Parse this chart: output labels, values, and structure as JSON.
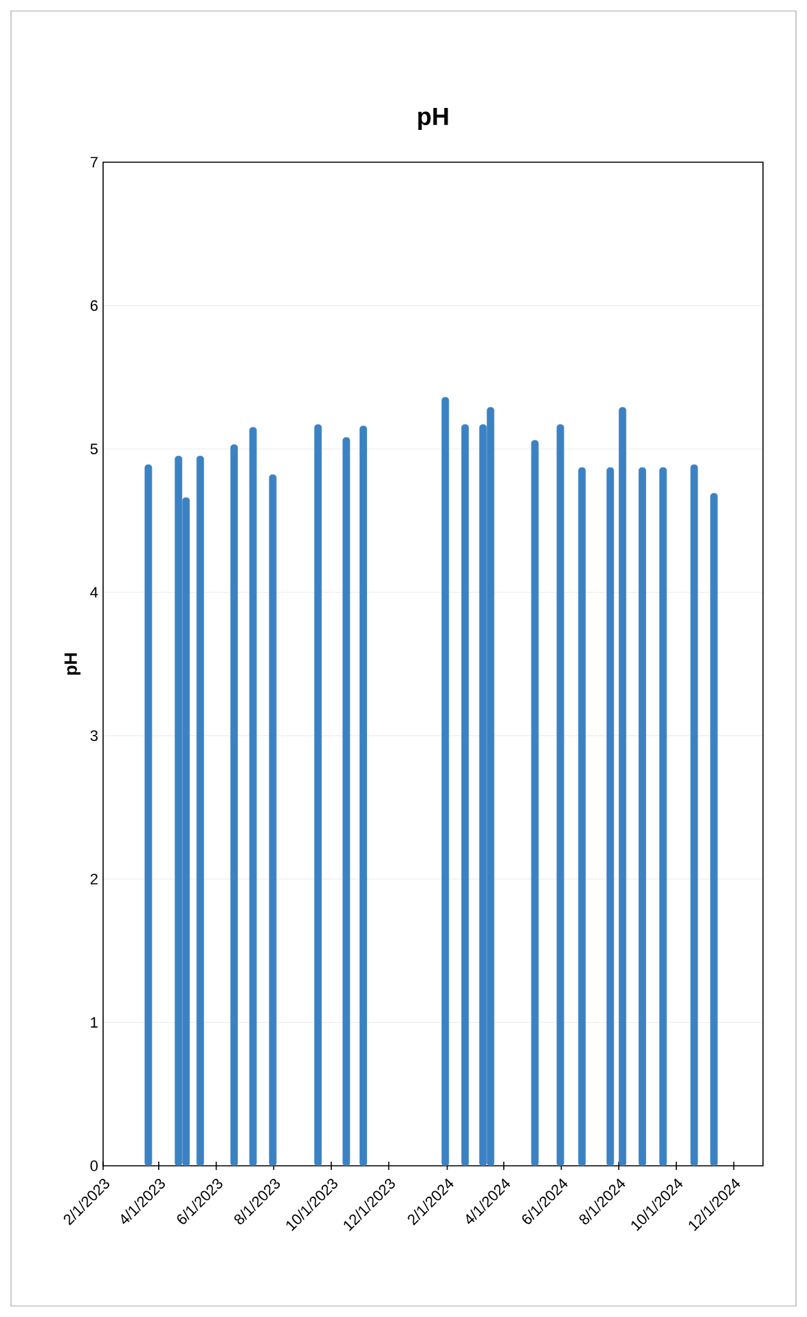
{
  "chart_data": {
    "type": "bar",
    "title": "pH",
    "ylabel": "pH",
    "x": [
      "2023-03-21",
      "2023-04-22",
      "2023-04-30",
      "2023-05-15",
      "2023-06-20",
      "2023-07-10",
      "2023-07-31",
      "2023-09-17",
      "2023-10-17",
      "2023-11-04",
      "2024-01-30",
      "2024-02-20",
      "2024-03-10",
      "2024-03-18",
      "2024-05-04",
      "2024-05-31",
      "2024-06-23",
      "2024-07-23",
      "2024-08-05",
      "2024-08-26",
      "2024-09-17",
      "2024-10-20",
      "2024-11-10"
    ],
    "values": [
      4.89,
      4.95,
      4.66,
      4.95,
      5.03,
      5.15,
      4.82,
      5.17,
      5.08,
      5.16,
      5.36,
      5.17,
      5.17,
      5.29,
      5.06,
      5.17,
      4.87,
      4.87,
      5.29,
      4.87,
      4.87,
      4.89,
      4.69
    ],
    "color": "#3b82c4",
    "xlim": [
      "2023-02-01",
      "2025-01-01"
    ],
    "xticks": [
      {
        "value": "2023-02-01",
        "label": "2/1/2023"
      },
      {
        "value": "2023-04-01",
        "label": "4/1/2023"
      },
      {
        "value": "2023-06-01",
        "label": "6/1/2023"
      },
      {
        "value": "2023-08-01",
        "label": "8/1/2023"
      },
      {
        "value": "2023-10-01",
        "label": "10/1/2023"
      },
      {
        "value": "2023-12-01",
        "label": "12/1/2023"
      },
      {
        "value": "2024-02-01",
        "label": "2/1/2024"
      },
      {
        "value": "2024-04-01",
        "label": "4/1/2024"
      },
      {
        "value": "2024-06-01",
        "label": "6/1/2024"
      },
      {
        "value": "2024-08-01",
        "label": "8/1/2024"
      },
      {
        "value": "2024-10-01",
        "label": "10/1/2024"
      },
      {
        "value": "2024-12-01",
        "label": "12/1/2024"
      }
    ],
    "ylim": [
      0,
      7
    ],
    "yticks": [
      0,
      1,
      2,
      3,
      4,
      5,
      6,
      7
    ],
    "grid": "y"
  }
}
